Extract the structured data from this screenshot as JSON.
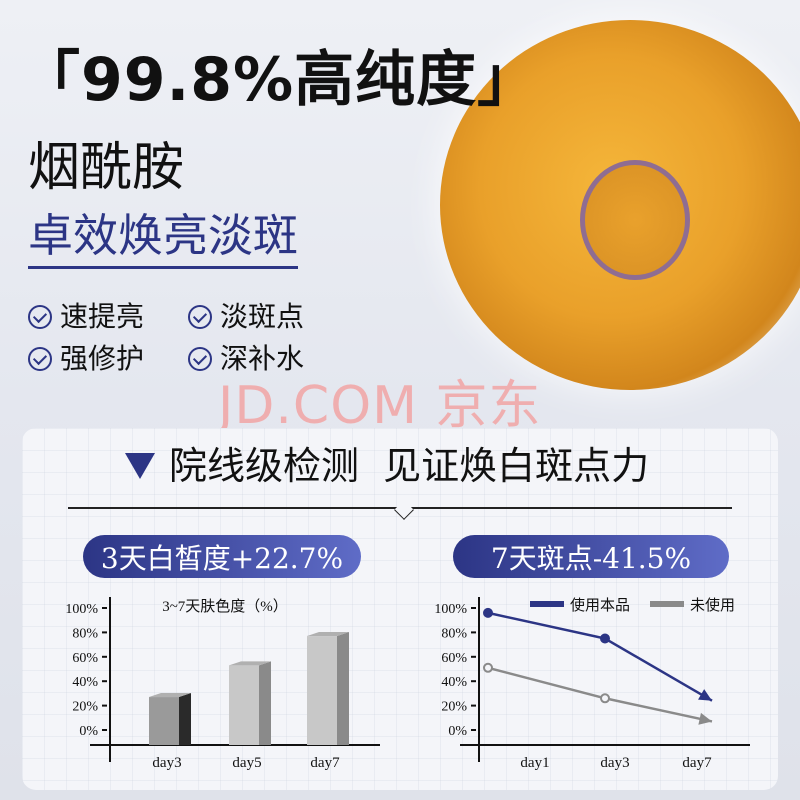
{
  "headline": "「99.8%高纯度」",
  "ingredient": "烟酰胺",
  "tagline": "卓效焕亮淡斑",
  "features": [
    "速提亮",
    "淡斑点",
    "强修护",
    "深补水"
  ],
  "watermark": "JD.COM 京东",
  "panel_title": "院线级检测  见证焕白斑点力",
  "colors": {
    "brand": "#2c3585",
    "gray": "#8a8a8a"
  },
  "pills": [
    "3天白皙度+22.7%",
    "7天斑点-41.5%"
  ],
  "chart_data": [
    {
      "type": "bar",
      "title": "3~7天肤色度（%）",
      "categories": [
        "day3",
        "day5",
        "day7"
      ],
      "values": [
        27,
        53,
        77
      ],
      "yticks": [
        "100%",
        "80%",
        "60%",
        "40%",
        "20%",
        "0%"
      ],
      "ylim": [
        0,
        100
      ]
    },
    {
      "type": "line",
      "categories": [
        "day1",
        "day3",
        "day7"
      ],
      "yticks": [
        "100%",
        "80%",
        "60%",
        "40%",
        "20%",
        "0%"
      ],
      "ylim": [
        0,
        100
      ],
      "legend": "top-right",
      "series": [
        {
          "name": "使用本品",
          "values": [
            96,
            75,
            24
          ],
          "color": "#2c3585"
        },
        {
          "name": "未使用",
          "values": [
            51,
            26,
            7
          ],
          "color": "#8a8a8a"
        }
      ]
    }
  ]
}
